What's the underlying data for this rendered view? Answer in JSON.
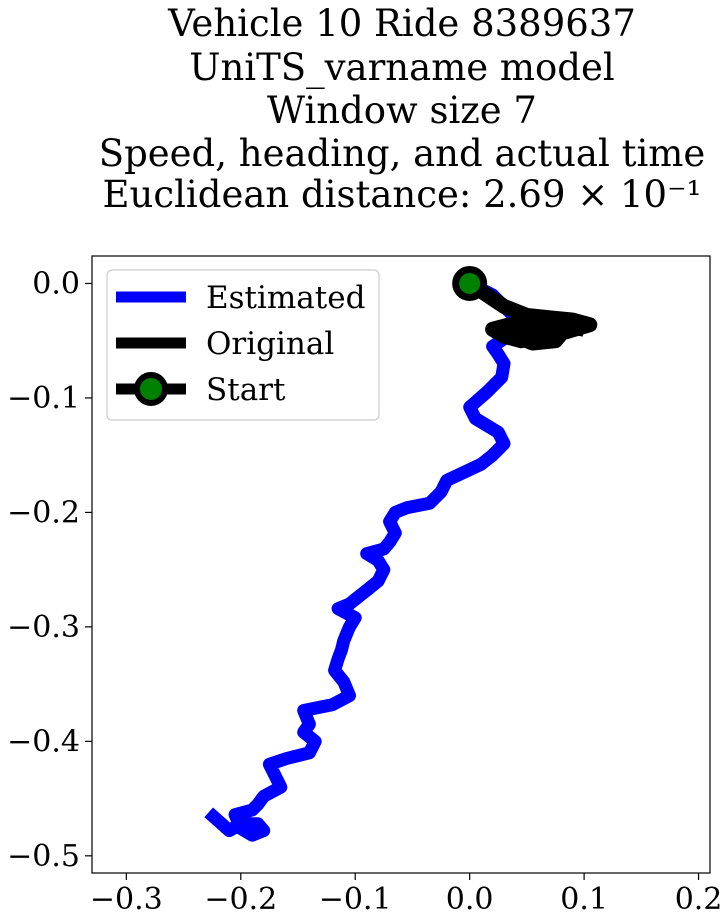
{
  "chart_data": {
    "type": "line",
    "title_lines": [
      "Vehicle 10 Ride 8389637",
      "UniTS_varname model",
      "Window size 7",
      "Speed, heading, and actual time",
      "Euclidean distance: 2.69 × 10⁻¹"
    ],
    "xlabel": "",
    "ylabel": "",
    "xlim": [
      -0.33,
      0.21
    ],
    "ylim": [
      -0.515,
      0.024
    ],
    "xticks": [
      -0.3,
      -0.2,
      -0.1,
      0.0,
      0.1,
      0.2
    ],
    "xtick_labels": [
      "−0.3",
      "−0.2",
      "−0.1",
      "0.0",
      "0.1",
      "0.2"
    ],
    "yticks": [
      0.0,
      -0.1,
      -0.2,
      -0.3,
      -0.4,
      -0.5
    ],
    "ytick_labels": [
      "0.0",
      "−0.1",
      "−0.2",
      "−0.3",
      "−0.4",
      "−0.5"
    ],
    "grid": false,
    "legend_position": "top-left",
    "colors": {
      "estimated": "#0000ff",
      "original": "#000000",
      "start_marker_fill": "#008000",
      "start_marker_edge": "#000000"
    },
    "series": [
      {
        "name": "Estimated",
        "points": [
          [
            0.0,
            0.0
          ],
          [
            0.02,
            -0.01
          ],
          [
            0.04,
            -0.03
          ],
          [
            0.035,
            -0.045
          ],
          [
            0.02,
            -0.055
          ],
          [
            0.025,
            -0.062
          ],
          [
            0.03,
            -0.07
          ],
          [
            0.028,
            -0.082
          ],
          [
            0.015,
            -0.095
          ],
          [
            0.0,
            -0.108
          ],
          [
            0.005,
            -0.118
          ],
          [
            0.025,
            -0.13
          ],
          [
            0.03,
            -0.14
          ],
          [
            0.02,
            -0.15
          ],
          [
            0.01,
            -0.158
          ],
          [
            -0.005,
            -0.165
          ],
          [
            -0.02,
            -0.172
          ],
          [
            -0.025,
            -0.182
          ],
          [
            -0.035,
            -0.192
          ],
          [
            -0.055,
            -0.196
          ],
          [
            -0.065,
            -0.2
          ],
          [
            -0.07,
            -0.208
          ],
          [
            -0.065,
            -0.218
          ],
          [
            -0.07,
            -0.226
          ],
          [
            -0.075,
            -0.232
          ],
          [
            -0.09,
            -0.236
          ],
          [
            -0.08,
            -0.242
          ],
          [
            -0.075,
            -0.25
          ],
          [
            -0.08,
            -0.26
          ],
          [
            -0.09,
            -0.268
          ],
          [
            -0.1,
            -0.276
          ],
          [
            -0.105,
            -0.28
          ],
          [
            -0.115,
            -0.284
          ],
          [
            -0.1,
            -0.292
          ],
          [
            -0.105,
            -0.3
          ],
          [
            -0.11,
            -0.312
          ],
          [
            -0.112,
            -0.32
          ],
          [
            -0.115,
            -0.328
          ],
          [
            -0.118,
            -0.338
          ],
          [
            -0.11,
            -0.348
          ],
          [
            -0.105,
            -0.36
          ],
          [
            -0.12,
            -0.368
          ],
          [
            -0.13,
            -0.37
          ],
          [
            -0.145,
            -0.373
          ],
          [
            -0.14,
            -0.385
          ],
          [
            -0.145,
            -0.392
          ],
          [
            -0.135,
            -0.4
          ],
          [
            -0.14,
            -0.41
          ],
          [
            -0.16,
            -0.415
          ],
          [
            -0.175,
            -0.42
          ],
          [
            -0.17,
            -0.43
          ],
          [
            -0.165,
            -0.44
          ],
          [
            -0.18,
            -0.448
          ],
          [
            -0.185,
            -0.455
          ],
          [
            -0.19,
            -0.46
          ],
          [
            -0.205,
            -0.464
          ],
          [
            -0.2,
            -0.476
          ],
          [
            -0.19,
            -0.482
          ],
          [
            -0.18,
            -0.478
          ],
          [
            -0.185,
            -0.472
          ],
          [
            -0.2,
            -0.472
          ],
          [
            -0.21,
            -0.478
          ],
          [
            -0.228,
            -0.462
          ]
        ]
      },
      {
        "name": "Original",
        "points": [
          [
            0.0,
            0.0
          ],
          [
            0.015,
            -0.01
          ],
          [
            0.03,
            -0.02
          ],
          [
            0.05,
            -0.028
          ],
          [
            0.07,
            -0.03
          ],
          [
            0.09,
            -0.032
          ],
          [
            0.105,
            -0.036
          ],
          [
            0.085,
            -0.042
          ],
          [
            0.065,
            -0.046
          ],
          [
            0.045,
            -0.05
          ],
          [
            0.03,
            -0.046
          ],
          [
            0.02,
            -0.04
          ],
          [
            0.035,
            -0.036
          ],
          [
            0.06,
            -0.038
          ],
          [
            0.08,
            -0.044
          ],
          [
            0.075,
            -0.05
          ],
          [
            0.055,
            -0.052
          ],
          [
            0.04,
            -0.046
          ],
          [
            0.05,
            -0.04
          ],
          [
            0.07,
            -0.04
          ],
          [
            0.09,
            -0.038
          ],
          [
            0.1,
            -0.04
          ]
        ]
      }
    ],
    "start_marker": {
      "label": "Start",
      "x": 0.0,
      "y": 0.0
    },
    "legend": [
      "Estimated",
      "Original",
      "Start"
    ]
  }
}
